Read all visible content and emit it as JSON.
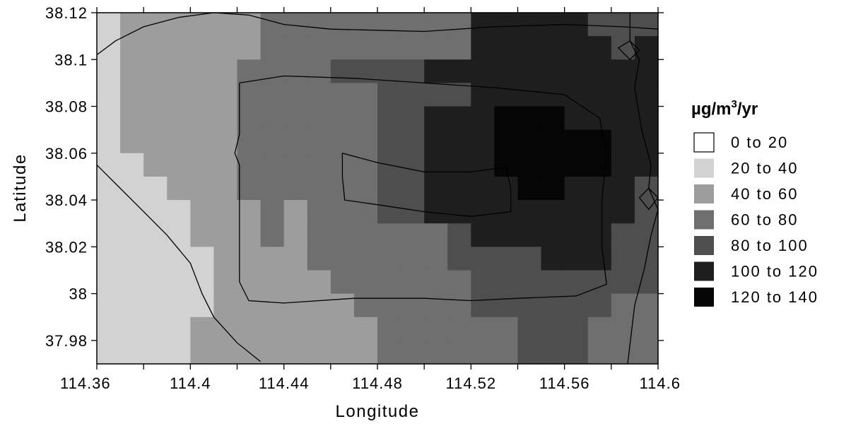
{
  "chart_data": {
    "type": "heatmap",
    "title": "",
    "xlabel": "Longitude",
    "ylabel": "Latitude",
    "xlim": [
      114.36,
      114.6
    ],
    "ylim": [
      37.97,
      38.12
    ],
    "x_ticks": [
      "114.36",
      "114.4",
      "114.44",
      "114.48",
      "114.52",
      "114.56",
      "114.6"
    ],
    "y_ticks": [
      "37.98",
      "38",
      "38.02",
      "38.04",
      "38.06",
      "38.08",
      "38.1",
      "38.12"
    ],
    "legend": {
      "unit": "µg/m",
      "unit_sup": "3",
      "unit_suffix": "/yr",
      "placement": "right",
      "bins": [
        {
          "label": "0  to  20",
          "color": "#ffffff"
        },
        {
          "label": "20  to  40",
          "color": "#d2d2d2"
        },
        {
          "label": "40  to  60",
          "color": "#9d9d9d"
        },
        {
          "label": "60  to  80",
          "color": "#6f6f6f"
        },
        {
          "label": "80  to  100",
          "color": "#4e4e4e"
        },
        {
          "label": "100  to  120",
          "color": "#1e1e1e"
        },
        {
          "label": "120  to  140",
          "color": "#050505"
        }
      ]
    },
    "grid_x": {
      "start": 114.36,
      "step": 0.01,
      "count": 24
    },
    "grid_y_rows_top_to_bottom": {
      "start": 38.12,
      "step": -0.01,
      "count": 15
    },
    "values_level": [
      [
        1,
        2,
        2,
        2,
        2,
        2,
        2,
        3,
        3,
        3,
        3,
        3,
        3,
        3,
        3,
        3,
        5,
        5,
        5,
        5,
        5,
        4,
        4,
        4
      ],
      [
        1,
        2,
        2,
        2,
        2,
        2,
        2,
        3,
        3,
        3,
        3,
        3,
        3,
        3,
        3,
        3,
        5,
        5,
        5,
        5,
        5,
        5,
        4,
        5
      ],
      [
        1,
        2,
        2,
        2,
        2,
        2,
        3,
        3,
        3,
        3,
        4,
        4,
        4,
        4,
        5,
        5,
        5,
        5,
        5,
        5,
        5,
        5,
        5,
        5
      ],
      [
        1,
        2,
        2,
        2,
        2,
        2,
        3,
        3,
        3,
        3,
        3,
        3,
        4,
        4,
        4,
        4,
        5,
        5,
        5,
        5,
        5,
        5,
        5,
        5
      ],
      [
        1,
        2,
        2,
        2,
        2,
        2,
        3,
        3,
        3,
        3,
        3,
        3,
        4,
        4,
        5,
        5,
        5,
        6,
        6,
        6,
        5,
        5,
        5,
        5
      ],
      [
        1,
        2,
        2,
        2,
        2,
        2,
        3,
        3,
        3,
        3,
        3,
        3,
        4,
        4,
        5,
        5,
        5,
        6,
        6,
        6,
        6,
        6,
        5,
        5
      ],
      [
        1,
        1,
        2,
        2,
        2,
        2,
        3,
        3,
        3,
        3,
        3,
        3,
        4,
        4,
        5,
        5,
        5,
        6,
        6,
        6,
        6,
        6,
        5,
        5
      ],
      [
        1,
        1,
        1,
        2,
        2,
        2,
        3,
        3,
        3,
        3,
        3,
        3,
        4,
        4,
        5,
        5,
        5,
        5,
        6,
        6,
        5,
        5,
        5,
        4
      ],
      [
        1,
        1,
        1,
        1,
        2,
        2,
        2,
        3,
        2,
        3,
        3,
        3,
        4,
        4,
        5,
        5,
        5,
        5,
        5,
        5,
        5,
        5,
        5,
        4
      ],
      [
        1,
        1,
        1,
        1,
        2,
        2,
        2,
        3,
        2,
        3,
        3,
        3,
        3,
        3,
        3,
        4,
        5,
        5,
        5,
        5,
        5,
        5,
        4,
        4
      ],
      [
        1,
        1,
        1,
        1,
        1,
        2,
        2,
        2,
        2,
        3,
        3,
        3,
        3,
        3,
        3,
        4,
        4,
        4,
        4,
        5,
        5,
        5,
        4,
        4
      ],
      [
        1,
        1,
        1,
        1,
        1,
        2,
        2,
        2,
        2,
        2,
        3,
        3,
        3,
        3,
        3,
        3,
        4,
        4,
        4,
        4,
        4,
        4,
        4,
        4
      ],
      [
        1,
        1,
        1,
        1,
        1,
        2,
        2,
        2,
        2,
        2,
        2,
        3,
        3,
        3,
        3,
        3,
        4,
        4,
        4,
        4,
        4,
        4,
        3,
        3
      ],
      [
        1,
        1,
        1,
        1,
        2,
        2,
        2,
        2,
        2,
        2,
        2,
        2,
        3,
        3,
        3,
        3,
        3,
        3,
        4,
        4,
        4,
        3,
        3,
        3
      ],
      [
        1,
        1,
        1,
        1,
        2,
        2,
        2,
        2,
        2,
        2,
        2,
        2,
        3,
        3,
        3,
        3,
        3,
        3,
        4,
        4,
        4,
        3,
        3,
        3
      ]
    ],
    "contours": [
      {
        "name": "outer",
        "points": [
          [
            114.36,
            38.102
          ],
          [
            114.368,
            38.108
          ],
          [
            114.38,
            38.114
          ],
          [
            114.395,
            38.118
          ],
          [
            114.41,
            38.12
          ],
          [
            114.425,
            38.119
          ],
          [
            114.44,
            38.115
          ],
          [
            114.46,
            38.113
          ],
          [
            114.5,
            38.112
          ],
          [
            114.53,
            38.114
          ],
          [
            114.56,
            38.115
          ],
          [
            114.585,
            38.114
          ],
          [
            114.6,
            38.113
          ]
        ]
      },
      {
        "name": "middle",
        "points": [
          [
            114.421,
            38.09
          ],
          [
            114.44,
            38.093
          ],
          [
            114.47,
            38.092
          ],
          [
            114.5,
            38.09
          ],
          [
            114.53,
            38.088
          ],
          [
            114.56,
            38.085
          ],
          [
            114.575,
            38.075
          ],
          [
            114.578,
            38.06
          ],
          [
            114.576,
            38.04
          ],
          [
            114.576,
            38.02
          ],
          [
            114.578,
            38.004
          ],
          [
            114.565,
            37.999
          ],
          [
            114.54,
            37.998
          ],
          [
            114.52,
            37.997
          ],
          [
            114.5,
            37.998
          ],
          [
            114.47,
            37.998
          ],
          [
            114.44,
            37.996
          ],
          [
            114.425,
            37.997
          ],
          [
            114.421,
            38.005
          ],
          [
            114.421,
            38.02
          ],
          [
            114.421,
            38.04
          ],
          [
            114.421,
            38.055
          ],
          [
            114.419,
            38.06
          ],
          [
            114.421,
            38.068
          ],
          [
            114.421,
            38.085
          ],
          [
            114.421,
            38.09
          ]
        ]
      },
      {
        "name": "inner",
        "points": [
          [
            114.465,
            38.06
          ],
          [
            114.48,
            38.056
          ],
          [
            114.5,
            38.052
          ],
          [
            114.52,
            38.052
          ],
          [
            114.535,
            38.054
          ],
          [
            114.537,
            38.045
          ],
          [
            114.537,
            38.035
          ],
          [
            114.52,
            38.033
          ],
          [
            114.5,
            38.035
          ],
          [
            114.48,
            38.038
          ],
          [
            114.466,
            38.04
          ],
          [
            114.465,
            38.05
          ],
          [
            114.465,
            38.06
          ]
        ]
      },
      {
        "name": "diagonal",
        "points": [
          [
            114.36,
            38.055
          ],
          [
            114.37,
            38.045
          ],
          [
            114.38,
            38.035
          ],
          [
            114.39,
            38.025
          ],
          [
            114.4,
            38.013
          ],
          [
            114.405,
            38.0
          ],
          [
            114.41,
            37.99
          ],
          [
            114.42,
            37.979
          ],
          [
            114.43,
            37.971
          ]
        ]
      },
      {
        "name": "right-vertical",
        "points": [
          [
            114.588,
            38.12
          ],
          [
            114.588,
            38.108
          ],
          [
            114.583,
            38.105
          ],
          [
            114.588,
            38.1
          ],
          [
            114.592,
            38.104
          ],
          [
            114.588,
            38.108
          ],
          [
            114.592,
            38.1
          ],
          [
            114.59,
            38.088
          ],
          [
            114.593,
            38.07
          ],
          [
            114.597,
            38.055
          ],
          [
            114.596,
            38.045
          ],
          [
            114.592,
            38.041
          ],
          [
            114.596,
            38.036
          ],
          [
            114.6,
            38.041
          ],
          [
            114.596,
            38.045
          ],
          [
            114.6,
            38.036
          ],
          [
            114.597,
            38.025
          ],
          [
            114.594,
            38.01
          ],
          [
            114.59,
            37.995
          ],
          [
            114.587,
            37.97
          ]
        ]
      }
    ]
  }
}
